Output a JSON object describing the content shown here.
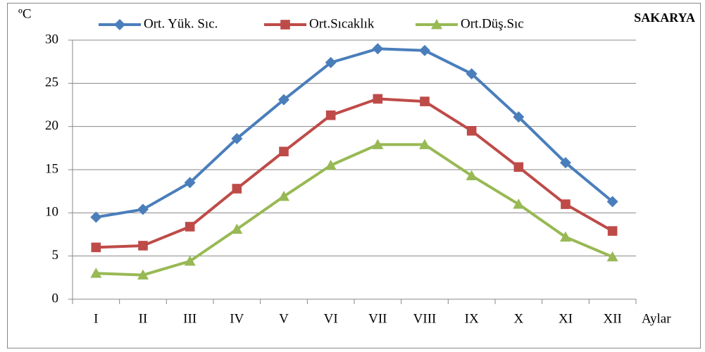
{
  "chart_data": {
    "type": "line",
    "title": "SAKARYA",
    "y_label": "ºC",
    "x_label": "Aylar",
    "categories": [
      "I",
      "II",
      "III",
      "IV",
      "V",
      "VI",
      "VII",
      "VIII",
      "IX",
      "X",
      "XI",
      "XII"
    ],
    "series": [
      {
        "name": "Ort. Yük. Sıc.",
        "color": "#4a7ebb",
        "marker": "diamond",
        "values": [
          9.5,
          10.4,
          13.5,
          18.6,
          23.1,
          27.4,
          29.0,
          28.8,
          26.1,
          21.1,
          15.8,
          11.3
        ]
      },
      {
        "name": "Ort.Sıcaklık",
        "color": "#be4b48",
        "marker": "square",
        "values": [
          6.0,
          6.2,
          8.4,
          12.8,
          17.1,
          21.3,
          23.2,
          22.9,
          19.5,
          15.3,
          11.0,
          7.9
        ]
      },
      {
        "name": "Ort.Düş.Sıc",
        "color": "#98b954",
        "marker": "triangle",
        "values": [
          3.0,
          2.8,
          4.4,
          8.1,
          11.9,
          15.5,
          17.9,
          17.9,
          14.3,
          11.0,
          7.2,
          4.9
        ]
      }
    ],
    "ylim": [
      0,
      30
    ],
    "yticks": [
      0,
      5,
      10,
      15,
      20,
      25,
      30
    ],
    "grid": true,
    "legend": "top"
  }
}
